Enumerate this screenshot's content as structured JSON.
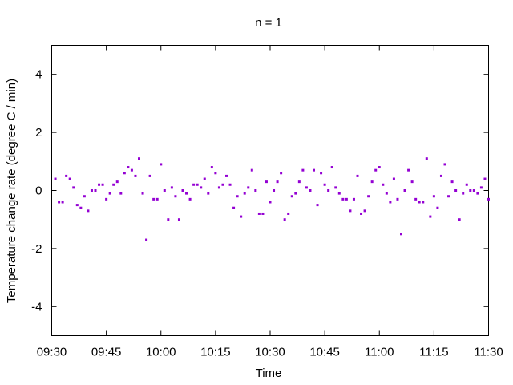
{
  "chart_data": {
    "type": "scatter",
    "title": "n = 1",
    "xlabel": "Time",
    "ylabel": "Temperature change rate (degree C / min)",
    "x_tick_labels": [
      "09:30",
      "09:45",
      "10:00",
      "10:15",
      "10:30",
      "10:45",
      "11:00",
      "11:15",
      "11:30"
    ],
    "x_range": [
      "09:30",
      "11:30"
    ],
    "y_ticks": [
      4,
      2,
      0,
      -2,
      -4
    ],
    "ylim": [
      -5,
      5
    ],
    "grid": false,
    "marker_color": "#9400d3",
    "series": [
      {
        "x": [
          "09:31",
          "09:32",
          "09:33",
          "09:34",
          "09:35",
          "09:36",
          "09:37",
          "09:38",
          "09:39",
          "09:40",
          "09:41",
          "09:42",
          "09:43",
          "09:44",
          "09:45",
          "09:46",
          "09:47",
          "09:48",
          "09:49",
          "09:50",
          "09:51",
          "09:52",
          "09:53",
          "09:54",
          "09:55",
          "09:56",
          "09:57",
          "09:58",
          "09:59",
          "10:00",
          "10:01",
          "10:02",
          "10:03",
          "10:04",
          "10:05",
          "10:06",
          "10:07",
          "10:08",
          "10:09",
          "10:10",
          "10:11",
          "10:12",
          "10:13",
          "10:14",
          "10:15",
          "10:16",
          "10:17",
          "10:18",
          "10:19",
          "10:20",
          "10:21",
          "10:22",
          "10:23",
          "10:24",
          "10:25",
          "10:26",
          "10:27",
          "10:28",
          "10:29",
          "10:30",
          "10:31",
          "10:32",
          "10:33",
          "10:34",
          "10:35",
          "10:36",
          "10:37",
          "10:38",
          "10:39",
          "10:40",
          "10:41",
          "10:42",
          "10:43",
          "10:44",
          "10:45",
          "10:46",
          "10:47",
          "10:48",
          "10:49",
          "10:50",
          "10:51",
          "10:52",
          "10:53",
          "10:54",
          "10:55",
          "10:56",
          "10:57",
          "10:58",
          "10:59",
          "11:00",
          "11:01",
          "11:02",
          "11:03",
          "11:04",
          "11:05",
          "11:06",
          "11:07",
          "11:08",
          "11:09",
          "11:10",
          "11:11",
          "11:12",
          "11:13",
          "11:14",
          "11:15",
          "11:16",
          "11:17",
          "11:18",
          "11:19",
          "11:20",
          "11:21",
          "11:22",
          "11:23",
          "11:24",
          "11:25",
          "11:26",
          "11:27",
          "11:28",
          "11:29",
          "11:30"
        ],
        "y": [
          0.4,
          -0.4,
          -0.4,
          0.5,
          0.4,
          0.1,
          -0.5,
          -0.6,
          -0.2,
          -0.7,
          0.0,
          0.0,
          0.2,
          0.2,
          -0.3,
          -0.1,
          0.2,
          0.3,
          -0.1,
          0.6,
          0.8,
          0.7,
          0.5,
          1.1,
          -0.1,
          -1.7,
          0.5,
          -0.3,
          -0.3,
          0.9,
          0.0,
          -1.0,
          0.1,
          -0.2,
          -1.0,
          0.0,
          -0.1,
          -0.3,
          0.2,
          0.2,
          0.1,
          0.4,
          -0.1,
          0.8,
          0.6,
          0.1,
          0.2,
          0.5,
          0.2,
          -0.6,
          -0.2,
          -0.9,
          -0.1,
          0.1,
          0.7,
          0.0,
          -0.8,
          -0.8,
          0.3,
          -0.4,
          0.0,
          0.3,
          0.6,
          -1.0,
          -0.8,
          -0.2,
          -0.1,
          0.3,
          0.7,
          0.1,
          0.0,
          0.7,
          -0.5,
          0.6,
          0.2,
          0.0,
          0.8,
          0.1,
          -0.1,
          -0.3,
          -0.3,
          -0.7,
          -0.3,
          0.5,
          -0.8,
          -0.7,
          -0.2,
          0.3,
          0.7,
          0.8,
          0.2,
          -0.1,
          -0.4,
          0.4,
          -0.3,
          -1.5,
          0.0,
          0.7,
          0.3,
          -0.3,
          -0.4,
          -0.4,
          1.1,
          -0.9,
          -0.2,
          -0.6,
          0.5,
          0.9,
          -0.2,
          0.3,
          0.0,
          -1.0,
          -0.1,
          0.2,
          0.0,
          0.0,
          -0.1,
          0.1,
          0.4,
          -0.3
        ]
      }
    ]
  }
}
